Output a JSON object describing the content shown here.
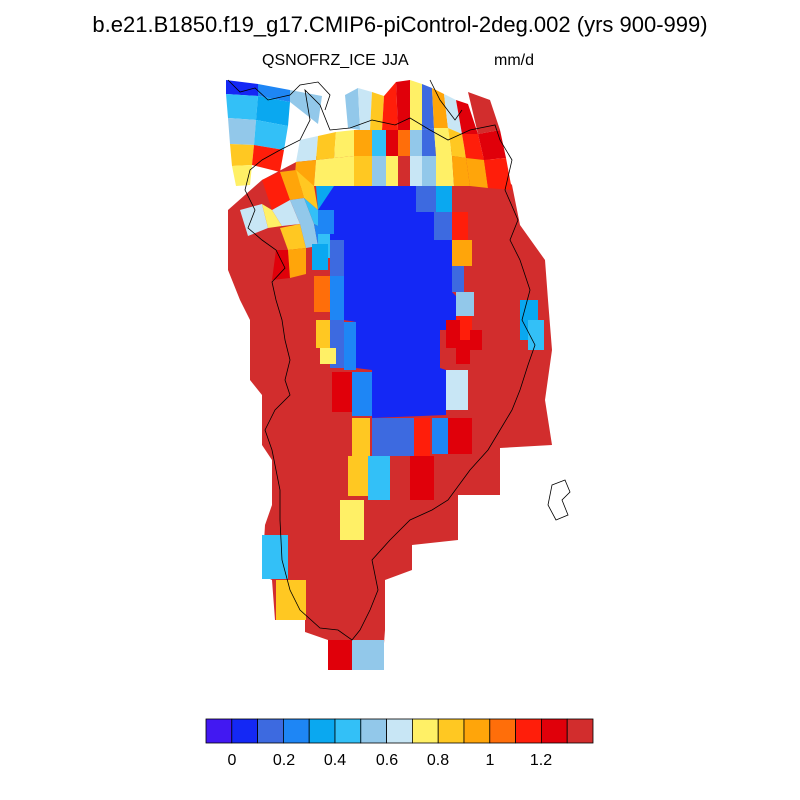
{
  "title": "b.e21.B1850.f19_g17.CMIP6-piControl-2deg.002 (yrs 900-999)",
  "left_string": "QSNOFRZ_ICE",
  "center_string": "JJA",
  "right_string": "mm/d",
  "colorbar": {
    "colors": [
      "#4218f2",
      "#1428f5",
      "#3d6ae0",
      "#1e86f5",
      "#0aa8f0",
      "#33c0f7",
      "#92c8ea",
      "#c8e6f5",
      "#fff066",
      "#ffc822",
      "#ffa50a",
      "#ff6e0a",
      "#ff1e0a",
      "#e0000a",
      "#d22d2d"
    ],
    "tick_labels": [
      "0",
      "0.2",
      "0.4",
      "0.6",
      "0.8",
      "1",
      "1.2"
    ],
    "tick_values": [
      0,
      0.2,
      0.4,
      0.6,
      0.8,
      1,
      1.2
    ]
  },
  "chart_data": {
    "type": "heatmap",
    "variable": "QSNOFRZ_ICE",
    "season": "JJA",
    "units": "mm/d",
    "legend": "bottom",
    "color_levels": [
      0,
      0.1,
      0.2,
      0.3,
      0.4,
      0.5,
      0.6,
      0.7,
      0.8,
      0.9,
      1.0,
      1.1,
      1.2,
      1.3
    ],
    "summary": "Greenland ice-sheet field: interior values near 0 (blue), margins above 1.3 (dark red), with intermediate bands along the edges."
  }
}
